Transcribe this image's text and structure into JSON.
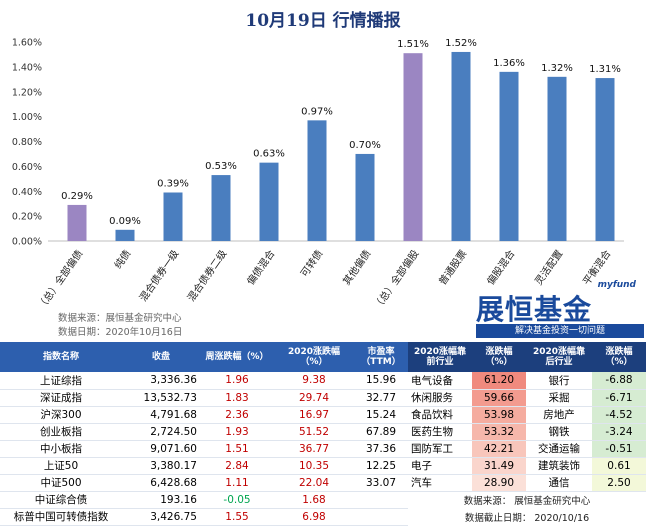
{
  "title": "10月19日  行情播报",
  "chart_data": {
    "type": "bar",
    "categories": [
      "（总）全部偏债",
      "纯债",
      "混合债券一级",
      "混合债券二级",
      "偏债混合",
      "可转债",
      "其他偏债",
      "（总）全部偏股",
      "普通股票",
      "偏股混合",
      "灵活配置",
      "平衡混合"
    ],
    "values": [
      0.29,
      0.09,
      0.39,
      0.53,
      0.63,
      0.97,
      0.7,
      1.51,
      1.52,
      1.36,
      1.32,
      1.31
    ],
    "data_labels": [
      "0.29%",
      "0.09%",
      "0.39%",
      "0.53%",
      "0.63%",
      "0.97%",
      "0.70%",
      "1.51%",
      "1.52%",
      "1.36%",
      "1.32%",
      "1.31%"
    ],
    "highlight_indices": [
      0,
      7
    ],
    "ylim": [
      0,
      1.6
    ],
    "yticks": [
      "0.00%",
      "0.20%",
      "0.40%",
      "0.60%",
      "0.80%",
      "1.00%",
      "1.20%",
      "1.40%",
      "1.60%"
    ],
    "grid": false,
    "colors": {
      "bar": "#4a7ebf",
      "highlight": "#9b86c2"
    }
  },
  "source": {
    "line1": "数据来源：展恒基金研究中心",
    "line2": "数据日期：2020年10月16日"
  },
  "brand": {
    "tag": "myfund",
    "name": "展恒基金",
    "slogan": "解决基金投资一切问题"
  },
  "table": {
    "headers": [
      "指数名称",
      "收盘",
      "周涨跌幅（%）",
      "2020涨跌幅（%）",
      "市盈率（TTM）",
      "2020涨幅靠前行业",
      "涨跌幅（%）",
      "2020涨幅靠后行业",
      "涨跌幅（%）"
    ],
    "rows": [
      {
        "name": "上证综指",
        "close": "3,336.36",
        "week": "1.96",
        "ytd": "9.38",
        "pe": "15.96",
        "top_ind": "电气设备",
        "top_val": "61.20",
        "bot_ind": "银行",
        "bot_val": "-6.88"
      },
      {
        "name": "深证成指",
        "close": "13,532.73",
        "week": "1.83",
        "ytd": "29.74",
        "pe": "32.77",
        "top_ind": "休闲服务",
        "top_val": "59.66",
        "bot_ind": "采掘",
        "bot_val": "-6.71"
      },
      {
        "name": "沪深300",
        "close": "4,791.68",
        "week": "2.36",
        "ytd": "16.97",
        "pe": "15.24",
        "top_ind": "食品饮料",
        "top_val": "53.98",
        "bot_ind": "房地产",
        "bot_val": "-4.52"
      },
      {
        "name": "创业板指",
        "close": "2,724.50",
        "week": "1.93",
        "ytd": "51.52",
        "pe": "67.89",
        "top_ind": "医药生物",
        "top_val": "53.32",
        "bot_ind": "钢铁",
        "bot_val": "-3.24"
      },
      {
        "name": "中小板指",
        "close": "9,071.60",
        "week": "1.51",
        "ytd": "36.77",
        "pe": "37.36",
        "top_ind": "国防军工",
        "top_val": "42.21",
        "bot_ind": "交通运输",
        "bot_val": "-0.51"
      },
      {
        "name": "上证50",
        "close": "3,380.17",
        "week": "2.84",
        "ytd": "10.35",
        "pe": "12.25",
        "top_ind": "电子",
        "top_val": "31.49",
        "bot_ind": "建筑装饰",
        "bot_val": "0.61"
      },
      {
        "name": "中证500",
        "close": "6,428.68",
        "week": "1.11",
        "ytd": "22.04",
        "pe": "33.07",
        "top_ind": "汽车",
        "top_val": "28.90",
        "bot_ind": "通信",
        "bot_val": "2.50"
      },
      {
        "name": "中证综合债",
        "close": "193.16",
        "week": "-0.05",
        "ytd": "1.68",
        "pe": ""
      },
      {
        "name": "标普中国可转债指数",
        "close": "3,426.75",
        "week": "1.55",
        "ytd": "6.98",
        "pe": ""
      }
    ],
    "foot1": "数据来源：  展恒基金研究中心",
    "foot2": "数据截止日期：  2020/10/16"
  }
}
